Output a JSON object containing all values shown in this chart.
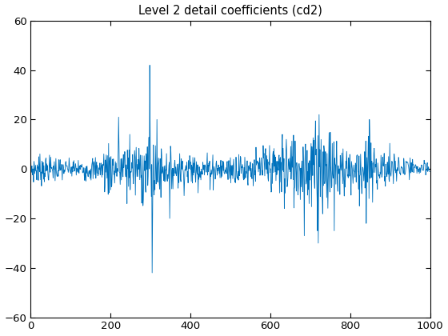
{
  "title": "Level 2 detail coefficients (cd2)",
  "xlim": [
    0,
    1000
  ],
  "ylim": [
    -60,
    60
  ],
  "xticks": [
    0,
    200,
    400,
    600,
    800,
    1000
  ],
  "yticks": [
    -60,
    -40,
    -20,
    0,
    20,
    40,
    60
  ],
  "line_color": "#0072BD",
  "line_width": 0.6,
  "background_color": "#ffffff",
  "n_points": 1000,
  "figsize": [
    5.6,
    4.2
  ],
  "dpi": 100
}
